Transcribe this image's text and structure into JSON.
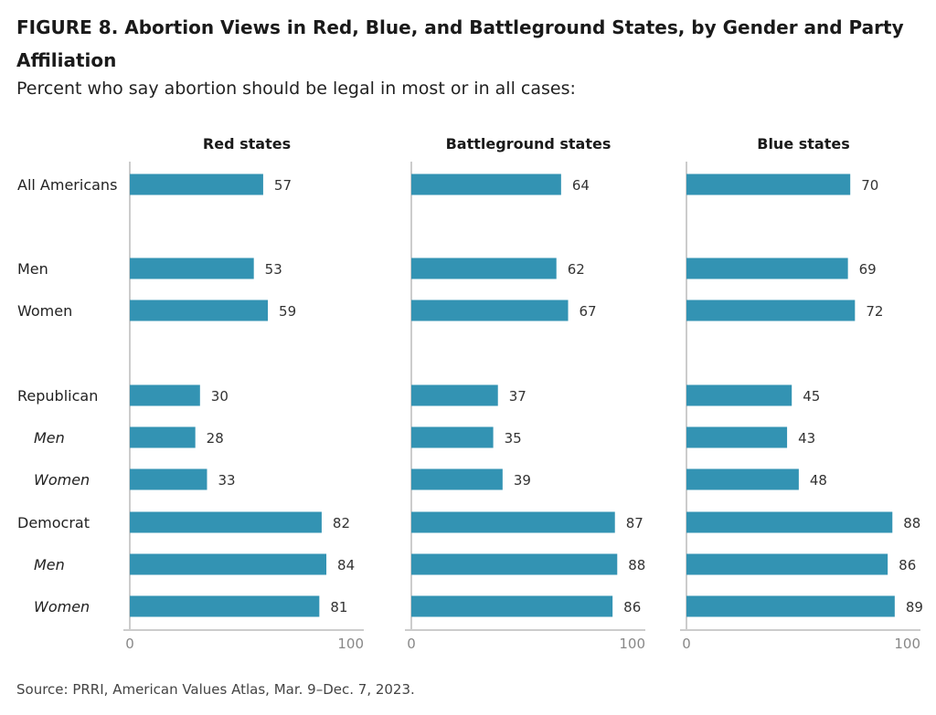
{
  "figure_title": "FIGURE 8. Abortion Views in Red, Blue, and Battleground States, by Gender and Party Affiliation",
  "subtitle": "Percent who say abortion should be legal in most or in all cases:",
  "source": "Source: PRRI, American Values Atlas, Mar. 9–Dec. 7, 2023.",
  "colors": {
    "bar": "#3393b3",
    "axis": "#cccccc",
    "tick_label": "#888888"
  },
  "chart_data": {
    "type": "bar",
    "orientation": "horizontal",
    "title": "FIGURE 8. Abortion Views in Red, Blue, and Battleground States, by Gender and Party Affiliation",
    "subtitle": "Percent who say abortion should be legal in most or in all cases:",
    "categories": [
      {
        "label": "All Americans",
        "italic": false
      },
      {
        "label": "Men",
        "italic": false
      },
      {
        "label": "Women",
        "italic": false
      },
      {
        "label": "Republican",
        "italic": false
      },
      {
        "label": "Men",
        "italic": true
      },
      {
        "label": "Women",
        "italic": true
      },
      {
        "label": "Democrat",
        "italic": false
      },
      {
        "label": "Men",
        "italic": true
      },
      {
        "label": "Women",
        "italic": true
      }
    ],
    "panels": [
      {
        "name": "Red states",
        "values": [
          57,
          53,
          59,
          30,
          28,
          33,
          82,
          84,
          81
        ]
      },
      {
        "name": "Battleground states",
        "values": [
          64,
          62,
          67,
          37,
          35,
          39,
          87,
          88,
          86
        ]
      },
      {
        "name": "Blue states",
        "values": [
          70,
          69,
          72,
          45,
          43,
          48,
          88,
          86,
          89
        ]
      }
    ],
    "xlim": [
      0,
      100
    ],
    "xticks": [
      "0",
      "100"
    ],
    "grid": false,
    "data_labels": true
  }
}
